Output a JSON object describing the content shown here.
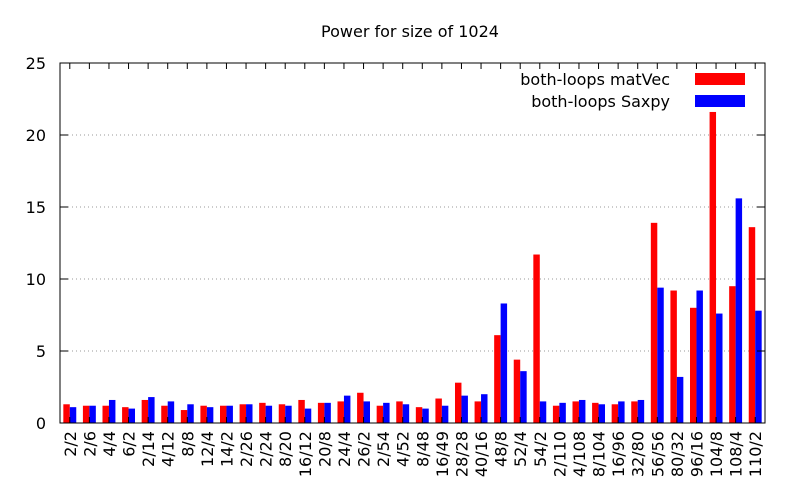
{
  "chart_data": {
    "type": "bar",
    "title": "Power for size of 1024",
    "xlabel": "",
    "ylabel": "",
    "ylim": [
      0,
      25
    ],
    "yticks": [
      0,
      5,
      10,
      15,
      20,
      25
    ],
    "grid": "horizontal dotted",
    "legend_position": "top-right",
    "categories": [
      "2/2",
      "2/6",
      "4/4",
      "6/2",
      "2/14",
      "4/12",
      "8/8",
      "12/4",
      "14/2",
      "2/26",
      "2/24",
      "8/20",
      "16/12",
      "20/8",
      "24/4",
      "26/2",
      "2/54",
      "4/52",
      "8/48",
      "16/49",
      "28/28",
      "40/16",
      "48/8",
      "52/4",
      "54/2",
      "2/110",
      "4/108",
      "8/104",
      "16/96",
      "32/80",
      "56/56",
      "80/32",
      "96/16",
      "104/8",
      "108/4",
      "110/2"
    ],
    "series": [
      {
        "name": "both-loops matVec",
        "color": "#ff0000",
        "values": [
          1.3,
          1.2,
          1.2,
          1.1,
          1.6,
          1.2,
          0.9,
          1.2,
          1.2,
          1.3,
          1.4,
          1.3,
          1.6,
          1.4,
          1.5,
          2.1,
          1.2,
          1.5,
          1.1,
          1.7,
          2.8,
          1.5,
          6.1,
          4.4,
          11.7,
          1.2,
          1.5,
          1.4,
          1.3,
          1.5,
          13.9,
          9.2,
          8.0,
          21.6,
          9.5,
          13.6
        ]
      },
      {
        "name": "both-loops Saxpy",
        "color": "#0000ff",
        "values": [
          1.1,
          1.2,
          1.6,
          1.0,
          1.8,
          1.5,
          1.3,
          1.1,
          1.2,
          1.3,
          1.2,
          1.2,
          1.0,
          1.4,
          1.9,
          1.5,
          1.4,
          1.3,
          1.0,
          1.2,
          1.9,
          2.0,
          8.3,
          3.6,
          1.5,
          1.4,
          1.6,
          1.3,
          1.5,
          1.6,
          9.4,
          3.2,
          9.2,
          7.6,
          15.6,
          7.8
        ]
      }
    ]
  }
}
